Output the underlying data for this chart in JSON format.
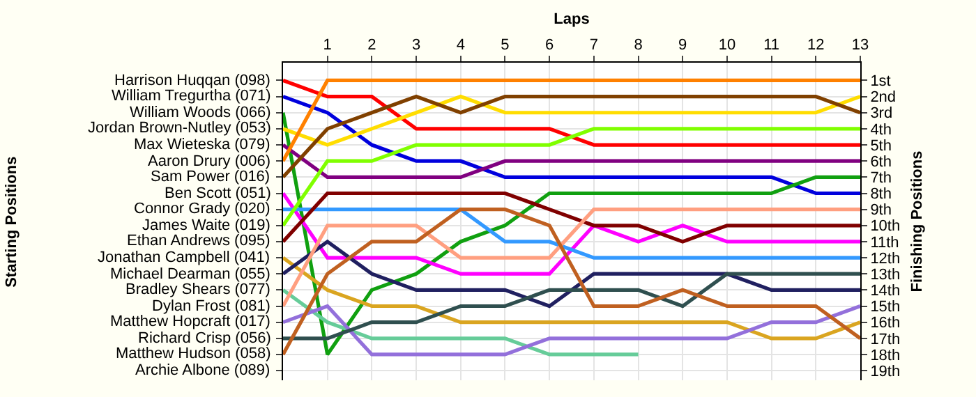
{
  "chart_data": {
    "type": "line",
    "xlabel": "Laps",
    "ylabel": "Finishing Positions",
    "line_style": "solid",
    "grid": true,
    "x": [
      0,
      1,
      2,
      3,
      4,
      5,
      6,
      7,
      8,
      9,
      10,
      11,
      12,
      13
    ],
    "xlim": [
      0,
      13
    ],
    "xticks": [
      1,
      2,
      3,
      4,
      5,
      6,
      7,
      8,
      9,
      10,
      11,
      12,
      13
    ],
    "ylim": [
      19.6,
      -0.1
    ],
    "yticks": [
      {
        "value": 1,
        "label": "1st"
      },
      {
        "value": 2,
        "label": "2nd"
      },
      {
        "value": 3,
        "label": "3rd"
      },
      {
        "value": 4,
        "label": "4th"
      },
      {
        "value": 5,
        "label": "5th"
      },
      {
        "value": 6,
        "label": "6th"
      },
      {
        "value": 7,
        "label": "7th"
      },
      {
        "value": 8,
        "label": "8th"
      },
      {
        "value": 9,
        "label": "9th"
      },
      {
        "value": 10,
        "label": "10th"
      },
      {
        "value": 11,
        "label": "11th"
      },
      {
        "value": 12,
        "label": "12th"
      },
      {
        "value": 13,
        "label": "13th"
      },
      {
        "value": 14,
        "label": "14th"
      },
      {
        "value": 15,
        "label": "15th"
      },
      {
        "value": 16,
        "label": "16th"
      },
      {
        "value": 17,
        "label": "17th"
      },
      {
        "value": 18,
        "label": "18th"
      },
      {
        "value": 19,
        "label": "19th"
      }
    ],
    "annotations": [
      "Starting Positions",
      "Harrison Huqqan (098)",
      "William Tregurtha (071)",
      "William Woods (066)",
      "Jordan Brown-Nutley (053)",
      "Max Wieteska (079)",
      "Aaron Drury (006)",
      "Sam Power (016)",
      "Ben Scott (051)",
      "Connor Grady (020)",
      "James Waite (019)",
      "Ethan Andrews (095)",
      "Jonathan Campbell (041)",
      "Michael Dearman (055)",
      "Bradley Shears (077)",
      "Dylan Frost (081)",
      "Matthew Hopcraft (017)",
      "Richard Crisp (056)",
      "Matthew Hudson (058)",
      "Archie Albone (089)"
    ],
    "series": [
      {
        "color": "#ff0000",
        "values": [
          1,
          2,
          2,
          4,
          4,
          4,
          4,
          5,
          5,
          5,
          5,
          5,
          5,
          5
        ]
      },
      {
        "color": "#0000dd",
        "values": [
          2,
          3,
          5,
          6,
          6,
          7,
          7,
          7,
          7,
          7,
          7,
          7,
          8,
          8
        ]
      },
      {
        "color": "#10a010",
        "values": [
          3,
          18,
          14,
          13,
          11,
          10,
          8,
          8,
          8,
          8,
          8,
          8,
          7,
          7
        ]
      },
      {
        "color": "#ffdd00",
        "values": [
          4,
          5,
          4,
          3,
          2,
          3,
          3,
          3,
          3,
          3,
          3,
          3,
          3,
          2
        ]
      },
      {
        "color": "#800080",
        "values": [
          5,
          7,
          7,
          7,
          7,
          6,
          6,
          6,
          6,
          6,
          6,
          6,
          6,
          6
        ]
      },
      {
        "color": "#ff8000",
        "values": [
          6,
          1,
          1,
          1,
          1,
          1,
          1,
          1,
          1,
          1,
          1,
          1,
          1,
          1
        ]
      },
      {
        "color": "#804000",
        "values": [
          7,
          4,
          3,
          2,
          3,
          2,
          2,
          2,
          2,
          2,
          2,
          2,
          2,
          3
        ]
      },
      {
        "color": "#ff00ff",
        "values": [
          8,
          12,
          12,
          12,
          13,
          13,
          13,
          10,
          11,
          10,
          11,
          11,
          11,
          11
        ]
      },
      {
        "color": "#3399ff",
        "values": [
          9,
          9,
          9,
          9,
          9,
          11,
          11,
          12,
          12,
          12,
          12,
          12,
          12,
          12
        ]
      },
      {
        "color": "#80ff00",
        "values": [
          10,
          6,
          6,
          5,
          5,
          5,
          5,
          4,
          4,
          4,
          4,
          4,
          4,
          4
        ]
      },
      {
        "color": "#800000",
        "values": [
          11,
          8,
          8,
          8,
          8,
          8,
          9,
          10,
          10,
          11,
          10,
          10,
          10,
          10
        ]
      },
      {
        "color": "#daa520",
        "values": [
          12,
          14,
          15,
          15,
          16,
          16,
          16,
          16,
          16,
          16,
          16,
          17,
          17,
          16
        ]
      },
      {
        "color": "#202060",
        "values": [
          13,
          11,
          13,
          14,
          14,
          14,
          15,
          13,
          13,
          13,
          13,
          14,
          14,
          14
        ]
      },
      {
        "color": "#66cc99",
        "values": [
          14,
          16,
          17,
          17,
          17,
          17,
          18,
          18,
          18,
          null,
          null,
          null,
          null,
          null
        ]
      },
      {
        "color": "#ff9f80",
        "values": [
          15,
          10,
          10,
          10,
          12,
          12,
          12,
          9,
          9,
          9,
          9,
          9,
          9,
          9
        ]
      },
      {
        "color": "#9370db",
        "values": [
          16,
          15,
          18,
          18,
          18,
          18,
          17,
          17,
          17,
          17,
          17,
          16,
          16,
          15
        ]
      },
      {
        "color": "#2f4f4f",
        "values": [
          17,
          17,
          16,
          16,
          15,
          15,
          14,
          14,
          14,
          15,
          13,
          13,
          13,
          13
        ]
      },
      {
        "color": "#c06020",
        "values": [
          18,
          13,
          11,
          11,
          9,
          9,
          10,
          15,
          15,
          14,
          15,
          15,
          15,
          17
        ]
      }
    ]
  }
}
